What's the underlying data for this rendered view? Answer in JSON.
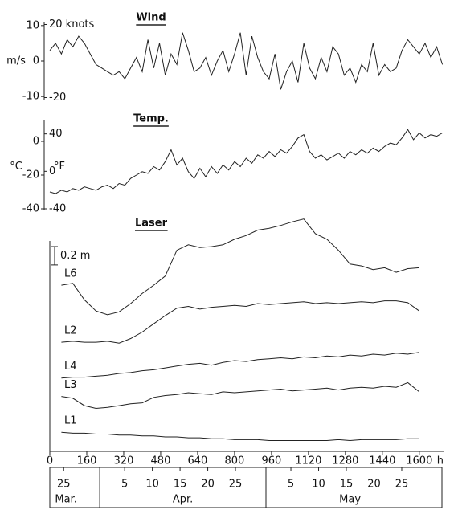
{
  "chart_data": [
    {
      "type": "line",
      "title": "Wind",
      "ylabel": "m/s",
      "xlim": [
        0,
        1705
      ],
      "x": [
        0,
        25,
        50,
        75,
        100,
        125,
        150,
        175,
        200,
        225,
        250,
        275,
        300,
        325,
        350,
        375,
        400,
        425,
        450,
        475,
        500,
        525,
        550,
        575,
        600,
        625,
        650,
        675,
        700,
        725,
        750,
        775,
        800,
        825,
        850,
        875,
        900,
        925,
        950,
        975,
        1000,
        1025,
        1050,
        1075,
        1100,
        1125,
        1150,
        1175,
        1200,
        1225,
        1250,
        1275,
        1300,
        1325,
        1350,
        1375,
        1400,
        1425,
        1450,
        1475,
        1500,
        1525,
        1550,
        1575,
        1600,
        1625,
        1650,
        1675,
        1700
      ],
      "values": [
        3,
        5,
        2,
        6,
        4,
        7,
        5,
        2,
        -1,
        -2,
        -3,
        -4,
        -3,
        -5,
        -2,
        1,
        -3,
        6,
        -2,
        5,
        -4,
        2,
        -1,
        8,
        3,
        -3,
        -2,
        1,
        -4,
        0,
        3,
        -3,
        2,
        8,
        -4,
        7,
        1,
        -3,
        -5,
        2,
        -8,
        -3,
        0,
        -6,
        5,
        -2,
        -5,
        1,
        -3,
        4,
        2,
        -4,
        -2,
        -6,
        -1,
        -3,
        5,
        -4,
        -1,
        -3,
        -2,
        3,
        6,
        4,
        2,
        5,
        1,
        4,
        -1
      ],
      "color": "#222222",
      "ylim": [
        -12,
        12
      ],
      "yticks": [
        10,
        0,
        -10
      ],
      "y2lim": [
        -23.3,
        23.3
      ],
      "y2ticks": [
        {
          "value": 20,
          "label": "20 knots"
        },
        -20
      ]
    },
    {
      "type": "line",
      "title": "Temp.",
      "ylabel": "°C",
      "y2label": "°F",
      "xlim": [
        0,
        1705
      ],
      "x": [
        0,
        25,
        50,
        75,
        100,
        125,
        150,
        175,
        200,
        225,
        250,
        275,
        300,
        325,
        350,
        375,
        400,
        425,
        450,
        475,
        500,
        525,
        550,
        575,
        600,
        625,
        650,
        675,
        700,
        725,
        750,
        775,
        800,
        825,
        850,
        875,
        900,
        925,
        950,
        975,
        1000,
        1025,
        1050,
        1075,
        1100,
        1125,
        1150,
        1175,
        1200,
        1225,
        1250,
        1275,
        1300,
        1325,
        1350,
        1375,
        1400,
        1425,
        1450,
        1475,
        1500,
        1525,
        1550,
        1575,
        1600,
        1625,
        1650,
        1675,
        1700
      ],
      "values": [
        -30,
        -31,
        -29,
        -30,
        -28,
        -29,
        -27,
        -28,
        -29,
        -27,
        -26,
        -28,
        -25,
        -26,
        -22,
        -20,
        -18,
        -19,
        -15,
        -17,
        -12,
        -5,
        -14,
        -10,
        -18,
        -22,
        -16,
        -21,
        -15,
        -19,
        -14,
        -17,
        -12,
        -15,
        -10,
        -13,
        -8,
        -10,
        -6,
        -9,
        -5,
        -7,
        -3,
        2,
        4,
        -6,
        -10,
        -8,
        -11,
        -9,
        -7,
        -10,
        -6,
        -8,
        -5,
        -7,
        -4,
        -6,
        -3,
        -1,
        -2,
        2,
        7,
        1,
        5,
        2,
        4,
        3,
        5
      ],
      "color": "#222222",
      "ylim": [
        -40,
        10
      ],
      "yticks": [
        0,
        -20,
        -40
      ],
      "y2lim": [
        -40,
        50
      ],
      "y2ticks": [
        40,
        0,
        -40
      ]
    },
    {
      "type": "line",
      "title": "Laser",
      "xlim": [
        0,
        1705
      ],
      "xticks": [
        0,
        160,
        320,
        480,
        640,
        800,
        960,
        1120,
        1280,
        1440,
        1600
      ],
      "xlabel": "h",
      "ylim": [
        0,
        2.7
      ],
      "scale_bar": {
        "value": 0.2,
        "label": "0.2 m"
      },
      "x": [
        50,
        100,
        150,
        200,
        250,
        300,
        350,
        400,
        450,
        500,
        550,
        600,
        650,
        700,
        750,
        800,
        850,
        900,
        950,
        1000,
        1050,
        1100,
        1150,
        1200,
        1250,
        1300,
        1350,
        1400,
        1450,
        1500,
        1550,
        1600
      ],
      "series": [
        {
          "name": "L6",
          "color": "#222222",
          "values": [
            1.86,
            1.88,
            1.7,
            1.58,
            1.54,
            1.57,
            1.66,
            1.77,
            1.86,
            1.96,
            2.24,
            2.3,
            2.27,
            2.28,
            2.3,
            2.36,
            2.4,
            2.46,
            2.48,
            2.51,
            2.55,
            2.58,
            2.42,
            2.36,
            2.24,
            2.09,
            2.07,
            2.03,
            2.05,
            2.0,
            2.04,
            2.05
          ]
        },
        {
          "name": "L2",
          "color": "#222222",
          "values": [
            1.24,
            1.25,
            1.24,
            1.24,
            1.25,
            1.23,
            1.28,
            1.35,
            1.44,
            1.53,
            1.61,
            1.63,
            1.6,
            1.62,
            1.63,
            1.64,
            1.63,
            1.66,
            1.65,
            1.66,
            1.67,
            1.68,
            1.66,
            1.67,
            1.66,
            1.67,
            1.68,
            1.67,
            1.69,
            1.69,
            1.67,
            1.58
          ]
        },
        {
          "name": "L4",
          "color": "#222222",
          "values": [
            0.85,
            0.86,
            0.86,
            0.87,
            0.88,
            0.9,
            0.91,
            0.93,
            0.94,
            0.96,
            0.98,
            1.0,
            1.01,
            0.99,
            1.02,
            1.04,
            1.03,
            1.05,
            1.06,
            1.07,
            1.06,
            1.08,
            1.07,
            1.09,
            1.08,
            1.1,
            1.09,
            1.11,
            1.1,
            1.12,
            1.11,
            1.13
          ]
        },
        {
          "name": "L3",
          "color": "#222222",
          "values": [
            0.65,
            0.63,
            0.55,
            0.52,
            0.53,
            0.55,
            0.57,
            0.58,
            0.64,
            0.66,
            0.67,
            0.69,
            0.68,
            0.67,
            0.7,
            0.69,
            0.7,
            0.71,
            0.72,
            0.73,
            0.71,
            0.72,
            0.73,
            0.74,
            0.72,
            0.74,
            0.75,
            0.74,
            0.76,
            0.75,
            0.8,
            0.7
          ]
        },
        {
          "name": "L1",
          "color": "#222222",
          "values": [
            0.26,
            0.25,
            0.25,
            0.24,
            0.24,
            0.23,
            0.23,
            0.22,
            0.22,
            0.21,
            0.21,
            0.2,
            0.2,
            0.19,
            0.19,
            0.18,
            0.18,
            0.18,
            0.17,
            0.17,
            0.17,
            0.17,
            0.17,
            0.17,
            0.18,
            0.17,
            0.18,
            0.18,
            0.18,
            0.18,
            0.19,
            0.19
          ]
        }
      ],
      "date_axis": {
        "days": [
          {
            "value": 60,
            "label": "25"
          },
          {
            "value": 324,
            "label": "5"
          },
          {
            "value": 444,
            "label": "10"
          },
          {
            "value": 564,
            "label": "15"
          },
          {
            "value": 684,
            "label": "20"
          },
          {
            "value": 804,
            "label": "25"
          },
          {
            "value": 1044,
            "label": "5"
          },
          {
            "value": 1164,
            "label": "10"
          },
          {
            "value": 1284,
            "label": "15"
          },
          {
            "value": 1404,
            "label": "20"
          },
          {
            "value": 1524,
            "label": "25"
          }
        ],
        "months": [
          {
            "value": 70,
            "label": "Mar."
          },
          {
            "value": 576,
            "label": "Apr."
          },
          {
            "value": 1300,
            "label": "May"
          }
        ],
        "month_bounds": [
          216,
          936
        ]
      }
    }
  ]
}
